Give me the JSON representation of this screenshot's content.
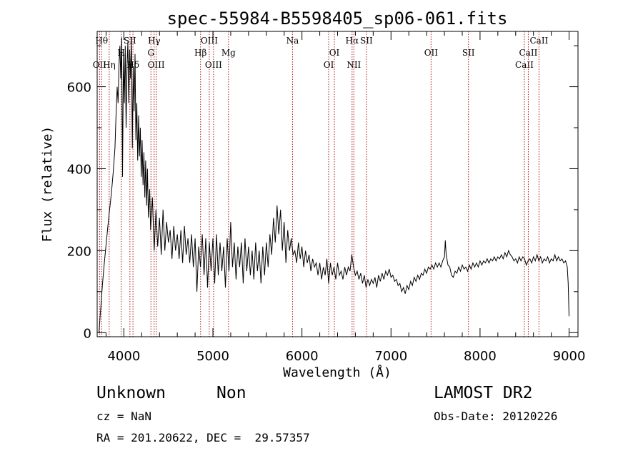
{
  "chart_data": {
    "type": "line",
    "title": "spec-55984-B5598405_sp06-061.fits",
    "xlabel": "Wavelength (Å)",
    "ylabel": "Flux (relative)",
    "xlim": [
      3700,
      9100
    ],
    "ylim": [
      -10,
      735
    ],
    "x_ticks": [
      4000,
      5000,
      6000,
      7000,
      8000,
      9000
    ],
    "y_ticks": [
      0,
      200,
      400,
      600
    ],
    "grid": false,
    "series": [
      {
        "color": "#000000",
        "points": [
          [
            3720,
            0
          ],
          [
            3740,
            60
          ],
          [
            3760,
            120
          ],
          [
            3780,
            170
          ],
          [
            3800,
            215
          ],
          [
            3820,
            260
          ],
          [
            3840,
            300
          ],
          [
            3860,
            340
          ],
          [
            3880,
            390
          ],
          [
            3900,
            450
          ],
          [
            3910,
            520
          ],
          [
            3925,
            600
          ],
          [
            3935,
            560
          ],
          [
            3945,
            650
          ],
          [
            3955,
            700
          ],
          [
            3965,
            620
          ],
          [
            3975,
            720
          ],
          [
            3985,
            380
          ],
          [
            3995,
            680
          ],
          [
            4005,
            560
          ],
          [
            4015,
            700
          ],
          [
            4025,
            500
          ],
          [
            4035,
            650
          ],
          [
            4045,
            710
          ],
          [
            4055,
            560
          ],
          [
            4065,
            690
          ],
          [
            4075,
            620
          ],
          [
            4085,
            720
          ],
          [
            4095,
            450
          ],
          [
            4105,
            650
          ],
          [
            4115,
            540
          ],
          [
            4125,
            680
          ],
          [
            4135,
            470
          ],
          [
            4145,
            560
          ],
          [
            4155,
            420
          ],
          [
            4165,
            530
          ],
          [
            4175,
            430
          ],
          [
            4185,
            500
          ],
          [
            4195,
            380
          ],
          [
            4205,
            470
          ],
          [
            4215,
            360
          ],
          [
            4225,
            440
          ],
          [
            4235,
            330
          ],
          [
            4245,
            420
          ],
          [
            4255,
            310
          ],
          [
            4265,
            400
          ],
          [
            4275,
            280
          ],
          [
            4290,
            350
          ],
          [
            4300,
            250
          ],
          [
            4320,
            330
          ],
          [
            4340,
            200
          ],
          [
            4360,
            300
          ],
          [
            4380,
            210
          ],
          [
            4400,
            280
          ],
          [
            4420,
            190
          ],
          [
            4440,
            300
          ],
          [
            4460,
            200
          ],
          [
            4480,
            270
          ],
          [
            4500,
            220
          ],
          [
            4520,
            250
          ],
          [
            4540,
            180
          ],
          [
            4560,
            260
          ],
          [
            4580,
            200
          ],
          [
            4600,
            240
          ],
          [
            4620,
            180
          ],
          [
            4640,
            250
          ],
          [
            4660,
            170
          ],
          [
            4680,
            260
          ],
          [
            4700,
            190
          ],
          [
            4720,
            230
          ],
          [
            4740,
            170
          ],
          [
            4760,
            240
          ],
          [
            4780,
            160
          ],
          [
            4800,
            230
          ],
          [
            4820,
            100
          ],
          [
            4840,
            210
          ],
          [
            4860,
            160
          ],
          [
            4880,
            240
          ],
          [
            4900,
            140
          ],
          [
            4920,
            230
          ],
          [
            4940,
            110
          ],
          [
            4960,
            220
          ],
          [
            4980,
            150
          ],
          [
            5000,
            230
          ],
          [
            5020,
            120
          ],
          [
            5040,
            240
          ],
          [
            5060,
            140
          ],
          [
            5080,
            220
          ],
          [
            5100,
            150
          ],
          [
            5120,
            210
          ],
          [
            5140,
            110
          ],
          [
            5160,
            230
          ],
          [
            5180,
            150
          ],
          [
            5200,
            270
          ],
          [
            5220,
            160
          ],
          [
            5240,
            220
          ],
          [
            5260,
            130
          ],
          [
            5280,
            210
          ],
          [
            5300,
            160
          ],
          [
            5320,
            220
          ],
          [
            5340,
            120
          ],
          [
            5360,
            230
          ],
          [
            5380,
            150
          ],
          [
            5400,
            210
          ],
          [
            5420,
            140
          ],
          [
            5440,
            200
          ],
          [
            5460,
            130
          ],
          [
            5480,
            220
          ],
          [
            5500,
            150
          ],
          [
            5520,
            200
          ],
          [
            5540,
            120
          ],
          [
            5560,
            210
          ],
          [
            5580,
            140
          ],
          [
            5600,
            220
          ],
          [
            5620,
            160
          ],
          [
            5640,
            240
          ],
          [
            5660,
            190
          ],
          [
            5680,
            280
          ],
          [
            5700,
            220
          ],
          [
            5720,
            310
          ],
          [
            5740,
            240
          ],
          [
            5760,
            300
          ],
          [
            5780,
            200
          ],
          [
            5800,
            270
          ],
          [
            5820,
            170
          ],
          [
            5840,
            250
          ],
          [
            5860,
            200
          ],
          [
            5880,
            230
          ],
          [
            5900,
            190
          ],
          [
            5920,
            200
          ],
          [
            5940,
            170
          ],
          [
            5960,
            220
          ],
          [
            5980,
            180
          ],
          [
            6000,
            210
          ],
          [
            6020,
            160
          ],
          [
            6040,
            200
          ],
          [
            6060,
            170
          ],
          [
            6080,
            190
          ],
          [
            6100,
            150
          ],
          [
            6120,
            180
          ],
          [
            6140,
            160
          ],
          [
            6160,
            170
          ],
          [
            6180,
            140
          ],
          [
            6200,
            170
          ],
          [
            6220,
            130
          ],
          [
            6240,
            160
          ],
          [
            6260,
            140
          ],
          [
            6280,
            180
          ],
          [
            6300,
            120
          ],
          [
            6320,
            170
          ],
          [
            6340,
            140
          ],
          [
            6360,
            160
          ],
          [
            6380,
            130
          ],
          [
            6400,
            170
          ],
          [
            6420,
            140
          ],
          [
            6440,
            150
          ],
          [
            6460,
            130
          ],
          [
            6480,
            160
          ],
          [
            6500,
            140
          ],
          [
            6520,
            160
          ],
          [
            6540,
            150
          ],
          [
            6560,
            190
          ],
          [
            6580,
            160
          ],
          [
            6600,
            140
          ],
          [
            6620,
            150
          ],
          [
            6640,
            130
          ],
          [
            6660,
            145
          ],
          [
            6680,
            120
          ],
          [
            6700,
            140
          ],
          [
            6720,
            110
          ],
          [
            6740,
            130
          ],
          [
            6760,
            115
          ],
          [
            6780,
            130
          ],
          [
            6800,
            120
          ],
          [
            6820,
            135
          ],
          [
            6840,
            110
          ],
          [
            6860,
            140
          ],
          [
            6880,
            125
          ],
          [
            6900,
            145
          ],
          [
            6920,
            130
          ],
          [
            6940,
            150
          ],
          [
            6960,
            140
          ],
          [
            6980,
            155
          ],
          [
            7000,
            135
          ],
          [
            7020,
            140
          ],
          [
            7040,
            125
          ],
          [
            7060,
            130
          ],
          [
            7080,
            115
          ],
          [
            7100,
            120
          ],
          [
            7120,
            100
          ],
          [
            7140,
            110
          ],
          [
            7160,
            95
          ],
          [
            7180,
            115
          ],
          [
            7200,
            105
          ],
          [
            7220,
            125
          ],
          [
            7240,
            115
          ],
          [
            7260,
            135
          ],
          [
            7280,
            125
          ],
          [
            7300,
            140
          ],
          [
            7320,
            130
          ],
          [
            7340,
            145
          ],
          [
            7360,
            140
          ],
          [
            7380,
            155
          ],
          [
            7400,
            145
          ],
          [
            7420,
            160
          ],
          [
            7440,
            155
          ],
          [
            7460,
            165
          ],
          [
            7480,
            155
          ],
          [
            7500,
            170
          ],
          [
            7520,
            160
          ],
          [
            7540,
            170
          ],
          [
            7560,
            160
          ],
          [
            7580,
            175
          ],
          [
            7600,
            185
          ],
          [
            7610,
            225
          ],
          [
            7620,
            190
          ],
          [
            7640,
            165
          ],
          [
            7660,
            160
          ],
          [
            7680,
            140
          ],
          [
            7700,
            135
          ],
          [
            7720,
            150
          ],
          [
            7740,
            145
          ],
          [
            7760,
            160
          ],
          [
            7780,
            150
          ],
          [
            7800,
            165
          ],
          [
            7820,
            155
          ],
          [
            7840,
            160
          ],
          [
            7860,
            150
          ],
          [
            7880,
            165
          ],
          [
            7900,
            155
          ],
          [
            7920,
            170
          ],
          [
            7940,
            160
          ],
          [
            7960,
            170
          ],
          [
            7980,
            160
          ],
          [
            8000,
            175
          ],
          [
            8020,
            165
          ],
          [
            8040,
            175
          ],
          [
            8060,
            170
          ],
          [
            8080,
            180
          ],
          [
            8100,
            170
          ],
          [
            8120,
            180
          ],
          [
            8140,
            175
          ],
          [
            8160,
            185
          ],
          [
            8180,
            175
          ],
          [
            8200,
            185
          ],
          [
            8220,
            180
          ],
          [
            8240,
            190
          ],
          [
            8260,
            180
          ],
          [
            8280,
            195
          ],
          [
            8300,
            185
          ],
          [
            8320,
            200
          ],
          [
            8340,
            190
          ],
          [
            8360,
            185
          ],
          [
            8380,
            175
          ],
          [
            8400,
            180
          ],
          [
            8420,
            170
          ],
          [
            8440,
            185
          ],
          [
            8460,
            175
          ],
          [
            8480,
            185
          ],
          [
            8500,
            180
          ],
          [
            8520,
            165
          ],
          [
            8540,
            175
          ],
          [
            8560,
            180
          ],
          [
            8580,
            170
          ],
          [
            8600,
            185
          ],
          [
            8620,
            175
          ],
          [
            8640,
            190
          ],
          [
            8660,
            175
          ],
          [
            8680,
            185
          ],
          [
            8700,
            170
          ],
          [
            8720,
            180
          ],
          [
            8740,
            175
          ],
          [
            8760,
            185
          ],
          [
            8780,
            170
          ],
          [
            8800,
            180
          ],
          [
            8820,
            175
          ],
          [
            8840,
            190
          ],
          [
            8860,
            175
          ],
          [
            8880,
            185
          ],
          [
            8900,
            175
          ],
          [
            8920,
            180
          ],
          [
            8940,
            170
          ],
          [
            8960,
            175
          ],
          [
            8980,
            160
          ],
          [
            8990,
            120
          ],
          [
            9000,
            40
          ]
        ]
      }
    ],
    "lines": [
      {
        "wl": 3727,
        "label": "OII",
        "tier": 3
      },
      {
        "wl": 3750,
        "label": "Hθ",
        "tier": 1
      },
      {
        "wl": 3835,
        "label": "Hη",
        "tier": 3
      },
      {
        "wl": 3970,
        "label": "H",
        "tier": 2
      },
      {
        "wl": 4068,
        "label": "SII",
        "tier": 1
      },
      {
        "wl": 4102,
        "label": "Hδ",
        "tier": 3
      },
      {
        "wl": 4304,
        "label": "G",
        "tier": 2
      },
      {
        "wl": 4340,
        "label": "Hγ",
        "tier": 1
      },
      {
        "wl": 4363,
        "label": "OIII",
        "tier": 3
      },
      {
        "wl": 4861,
        "label": "Hβ",
        "tier": 2
      },
      {
        "wl": 4959,
        "label": "OIII",
        "tier": 1
      },
      {
        "wl": 5007,
        "label": "OIII",
        "tier": 3
      },
      {
        "wl": 5175,
        "label": "Mg",
        "tier": 2
      },
      {
        "wl": 5894,
        "label": "Na",
        "tier": 1
      },
      {
        "wl": 6300,
        "label": "OI",
        "tier": 3
      },
      {
        "wl": 6364,
        "label": "OI",
        "tier": 2
      },
      {
        "wl": 6563,
        "label": "Hα",
        "tier": 1
      },
      {
        "wl": 6583,
        "label": "NII",
        "tier": 3
      },
      {
        "wl": 6724,
        "label": "SII",
        "tier": 1
      },
      {
        "wl": 7450,
        "label": "OII",
        "tier": 2
      },
      {
        "wl": 7870,
        "label": "SII",
        "tier": 2
      },
      {
        "wl": 8498,
        "label": "CaII",
        "tier": 3
      },
      {
        "wl": 8542,
        "label": "CaII",
        "tier": 2
      },
      {
        "wl": 8662,
        "label": "CaII",
        "tier": 1
      }
    ]
  },
  "info": {
    "object_type": "Unknown",
    "object_class": "Non",
    "survey": "LAMOST DR2",
    "redshift": "cz = NaN",
    "obs_date": "Obs-Date: 20120226",
    "coordinates": "RA = 201.20622, DEC =  29.57357"
  }
}
